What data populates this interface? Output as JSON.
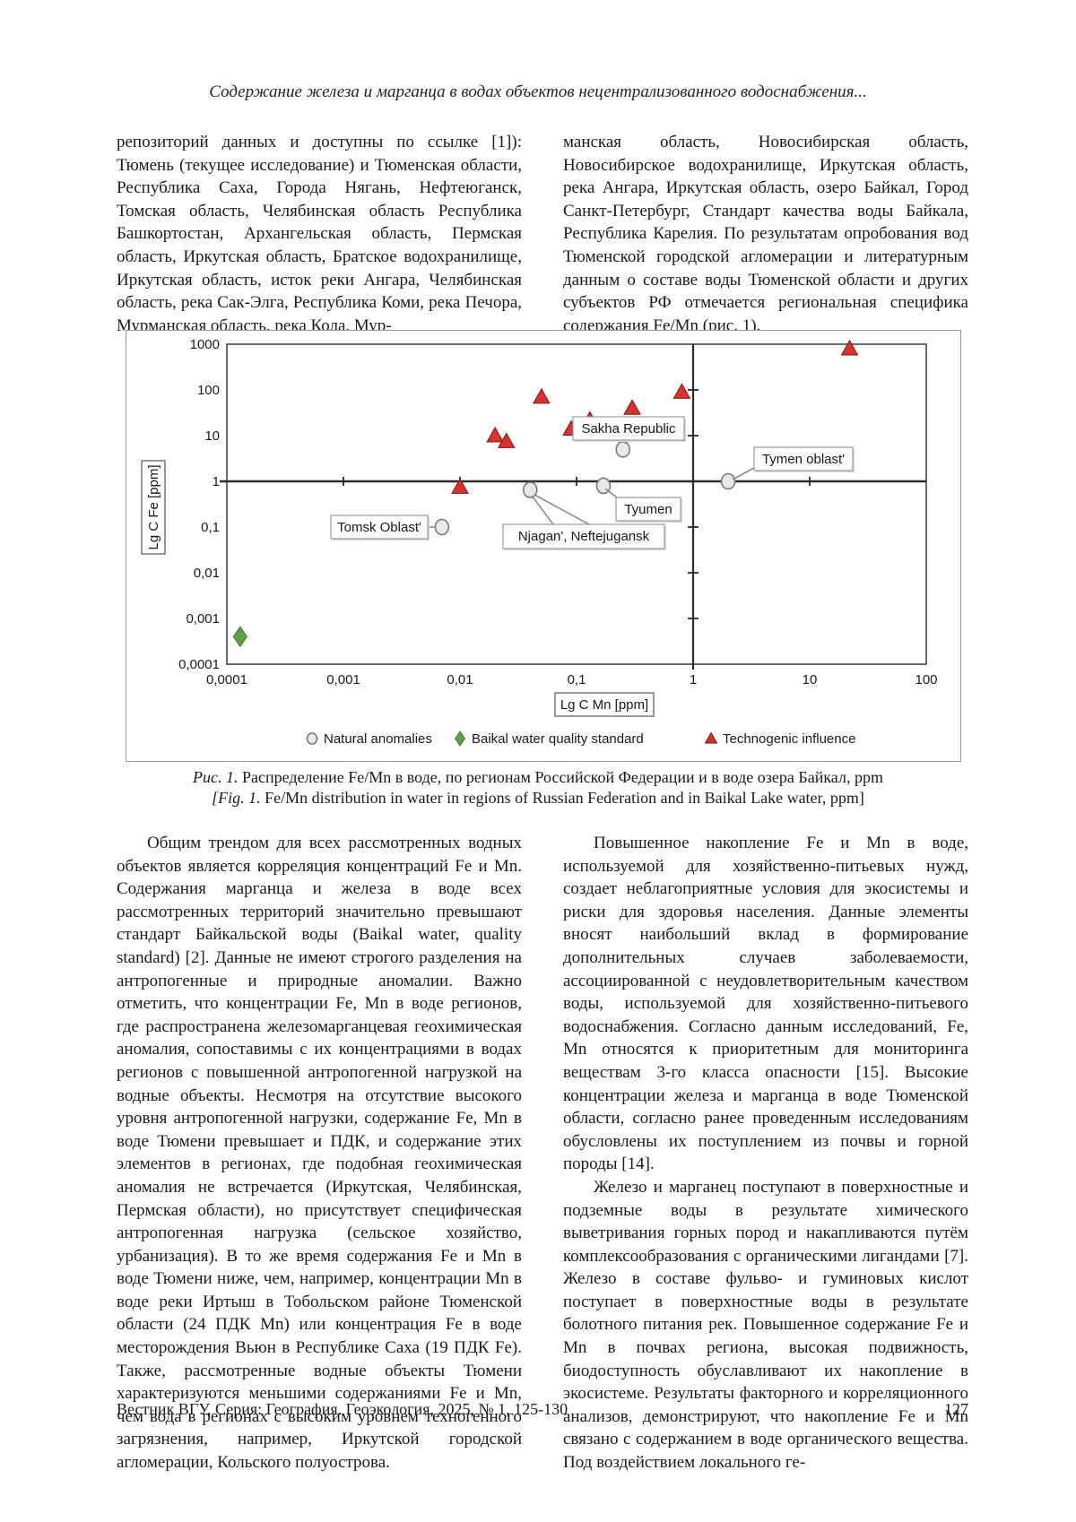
{
  "page": {
    "running_head": "Содержание железа и марганца в водах объектов нецентрализованного водоснабжения...",
    "footer_text": "Вестник ВГУ, Серия: География. Геоэкология, 2025, № 1, 125-130",
    "page_number": "127"
  },
  "article": {
    "col1_para1": "репозиторий данных и доступны по ссылке [1]): Тюмень (текущее исследование) и Тюменская области, Республика Саха, Города Нягань, Нефтеюганск, Томская область, Челябинская область  Республика Башкортостан, Архангельская область, Пермская область, Иркутская область, Братское водохранилище, Иркутская область, исток реки Ангара, Челябинская область, река Сак-Элга, Республика Коми, река Печора, Мурманская область, река Кола, Мур-",
    "col2_para1": "манская область, Новосибирская область, Новосибирское водохранилище, Иркутская область, река Ангара, Иркутская область, озеро Байкал, Город Санкт-Петербург, Стандарт качества воды Байкала, Республика Карелия. По результатам опробования вод Тюменской городской агломерации и литературным данным о составе воды Тюменской области и других субъектов РФ отмечается региональная специфика содержания Fe/Mn (рис. 1).",
    "col1_para2": "Общим трендом для всех рассмотренных водных объектов является корреляция концентраций Fe и Mn. Содержания марганца и железа в воде всех рассмотренных территорий значительно превышают стандарт Байкальской воды (Baikal water, quality standard) [2]. Данные не имеют строгого разделения на антропогенные и природные аномалии. Важно отметить, что концентрации Fe, Mn в воде регионов, где распространена железомарганцевая геохимическая аномалия, сопоставимы с их концентрациями в водах регионов с повышенной антропогенной нагрузкой на водные объекты. Несмотря на отсутствие высокого уровня антропогенной нагрузки, содержание Fe, Mn в воде Тюмени превышает и ПДК, и содержание этих элементов в регионах, где подобная геохимическая аномалия не встречается (Иркутская, Челябинская, Пермская области), но присутствует специфическая антропогенная нагрузка (сельское хозяйство, урбанизация). В то же время содержания Fe и Mn в воде Тюмени ниже, чем, например, концентрации Mn в воде реки Иртыш в Тобольском районе Тюменской области (24 ПДК Mn) или концентрация Fe в воде месторождения Вьюн в Республике Саха (19 ПДК Fe). Также, рассмотренные водные объекты Тюмени характеризуются меньшими содержаниями Fe и Mn, чем вода в регионах с высоким уровнем техногенного загрязнения, например, Иркутской городской агломерации, Кольского полуострова.",
    "col2_para2": "Повышенное накопление Fe и Mn в воде, используемой для хозяйственно-питьевых нужд, создает неблагоприятные условия для экосистемы и риски для здоровья населения. Данные элементы вносят наибольший вклад в формирование дополнительных случаев заболеваемости, ассоциированной с неудовлетворительным качеством воды, используемой для хозяйственно-питьевого водоснабжения. Согласно данным исследований, Fe, Mn относятся к приоритетным для мониторинга веществам 3-го класса опасности [15]. Высокие концентрации железа и марганца в воде Тюменской области, согласно ранее проведенным исследованиям обусловлены их поступлением из почвы и горной породы [14].",
    "col2_para3": "Железо и марганец поступают в поверхностные и подземные воды в результате химического выветривания горных пород и накапливаются путём комплексообразования с органическими лигандами [7]. Железо в составе фульво- и гуминовых кислот поступает в поверхностные воды в результате болотного питания рек. Повышенное содержание Fe и Mn в почвах региона, высокая подвижность, биодоступность обуславливают их накопление в экосистеме. Результаты факторного и корреляционного анализов, демонстрируют, что накопление Fe и Mn связано с содержанием в воде органического вещества. Под воздействием локального ге-"
  },
  "figure": {
    "caption_ru_label": "Рис. 1.",
    "caption_ru_text": " Распределение Fe/Mn в воде, по регионам Российской Федерации и в воде озера Байкал, ppm",
    "caption_en_label": "[Fig. 1.",
    "caption_en_text": " Fe/Mn distribution in water in regions of Russian Federation and in Baikal Lake water, ppm]"
  },
  "chart_data": {
    "type": "scatter",
    "title": "",
    "xlabel": "Lg C Mn [ppm]",
    "ylabel": "Lg C Fe [ppm]",
    "x_scale": "log",
    "y_scale": "log",
    "xlim": [
      0.0001,
      100
    ],
    "ylim": [
      0.0001,
      1000
    ],
    "x_ticks": [
      "0,0001",
      "0,001",
      "0,01",
      "0,1",
      "1",
      "10",
      "100"
    ],
    "y_ticks": [
      "1000",
      "100",
      "10",
      "1",
      "0,1",
      "0,01",
      "0,001",
      "0,0001"
    ],
    "reference_lines": {
      "x": 1,
      "y": 1
    },
    "grid": false,
    "legend_position": "bottom",
    "colors": {
      "technogenic_fill": "#d93030",
      "technogenic_edge": "#7b1a14",
      "natural_fill": "#e8e8e8",
      "natural_edge": "#7a7a7a",
      "baikal_fill": "#5fa348",
      "baikal_edge": "#3f7030",
      "axis": "#2b2b2b",
      "callout_border": "#9a9a9a",
      "leader": "#8c8c8c"
    },
    "series": [
      {
        "name": "Natural anomalies",
        "marker": "circle",
        "points": [
          {
            "x": 0.25,
            "y": 5,
            "label": "Sakha Republic"
          },
          {
            "x": 2,
            "y": 1,
            "label": "Tymen oblast'"
          },
          {
            "x": 0.17,
            "y": 0.8,
            "label": "Tyumen"
          },
          {
            "x": 0.04,
            "y": 0.65,
            "label": "Njagan', Neftejugansk"
          },
          {
            "x": 0.007,
            "y": 0.1,
            "label": "Tomsk Oblast'"
          }
        ]
      },
      {
        "name": "Baikal water quality standard",
        "marker": "diamond",
        "points": [
          {
            "x": 0.00013,
            "y": 0.0004
          }
        ]
      },
      {
        "name": "Technogenic influence",
        "marker": "triangle",
        "points": [
          {
            "x": 22,
            "y": 800
          },
          {
            "x": 0.05,
            "y": 70
          },
          {
            "x": 0.3,
            "y": 40
          },
          {
            "x": 0.8,
            "y": 90
          },
          {
            "x": 0.02,
            "y": 10
          },
          {
            "x": 0.025,
            "y": 7.5
          },
          {
            "x": 0.09,
            "y": 14
          },
          {
            "x": 0.13,
            "y": 22
          },
          {
            "x": 0.01,
            "y": 0.75
          }
        ]
      }
    ]
  }
}
